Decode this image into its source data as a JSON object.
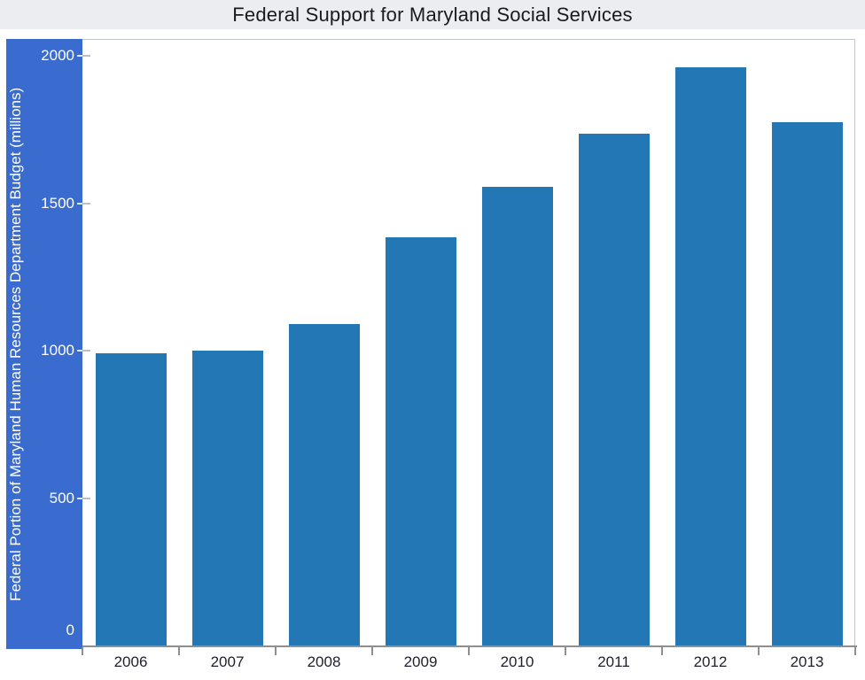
{
  "title_bar": {
    "title": "Federal Support for Maryland Social Services"
  },
  "chart_data": {
    "type": "bar",
    "title": "Federal Support for Maryland Social Services",
    "categories": [
      "2006",
      "2007",
      "2008",
      "2009",
      "2010",
      "2011",
      "2012",
      "2013"
    ],
    "values": [
      990,
      1000,
      1090,
      1385,
      1555,
      1735,
      1960,
      1775
    ],
    "xlabel": "",
    "ylabel": "Federal Portion of Maryland Human Resources Department Budget (millions)",
    "ylim": [
      0,
      2057
    ],
    "yticks": [
      0,
      500,
      1000,
      1500,
      2000
    ],
    "grid": false,
    "legend_position": "none",
    "colors": {
      "bar": "#2277B4",
      "y_axis_band": "#3A6BCE",
      "title_background": "#ECEDF1",
      "axis_line": "#8F8F8F",
      "x_tick_label": "#1F1F2E",
      "y_tick_label": "#FFFFFF"
    }
  }
}
